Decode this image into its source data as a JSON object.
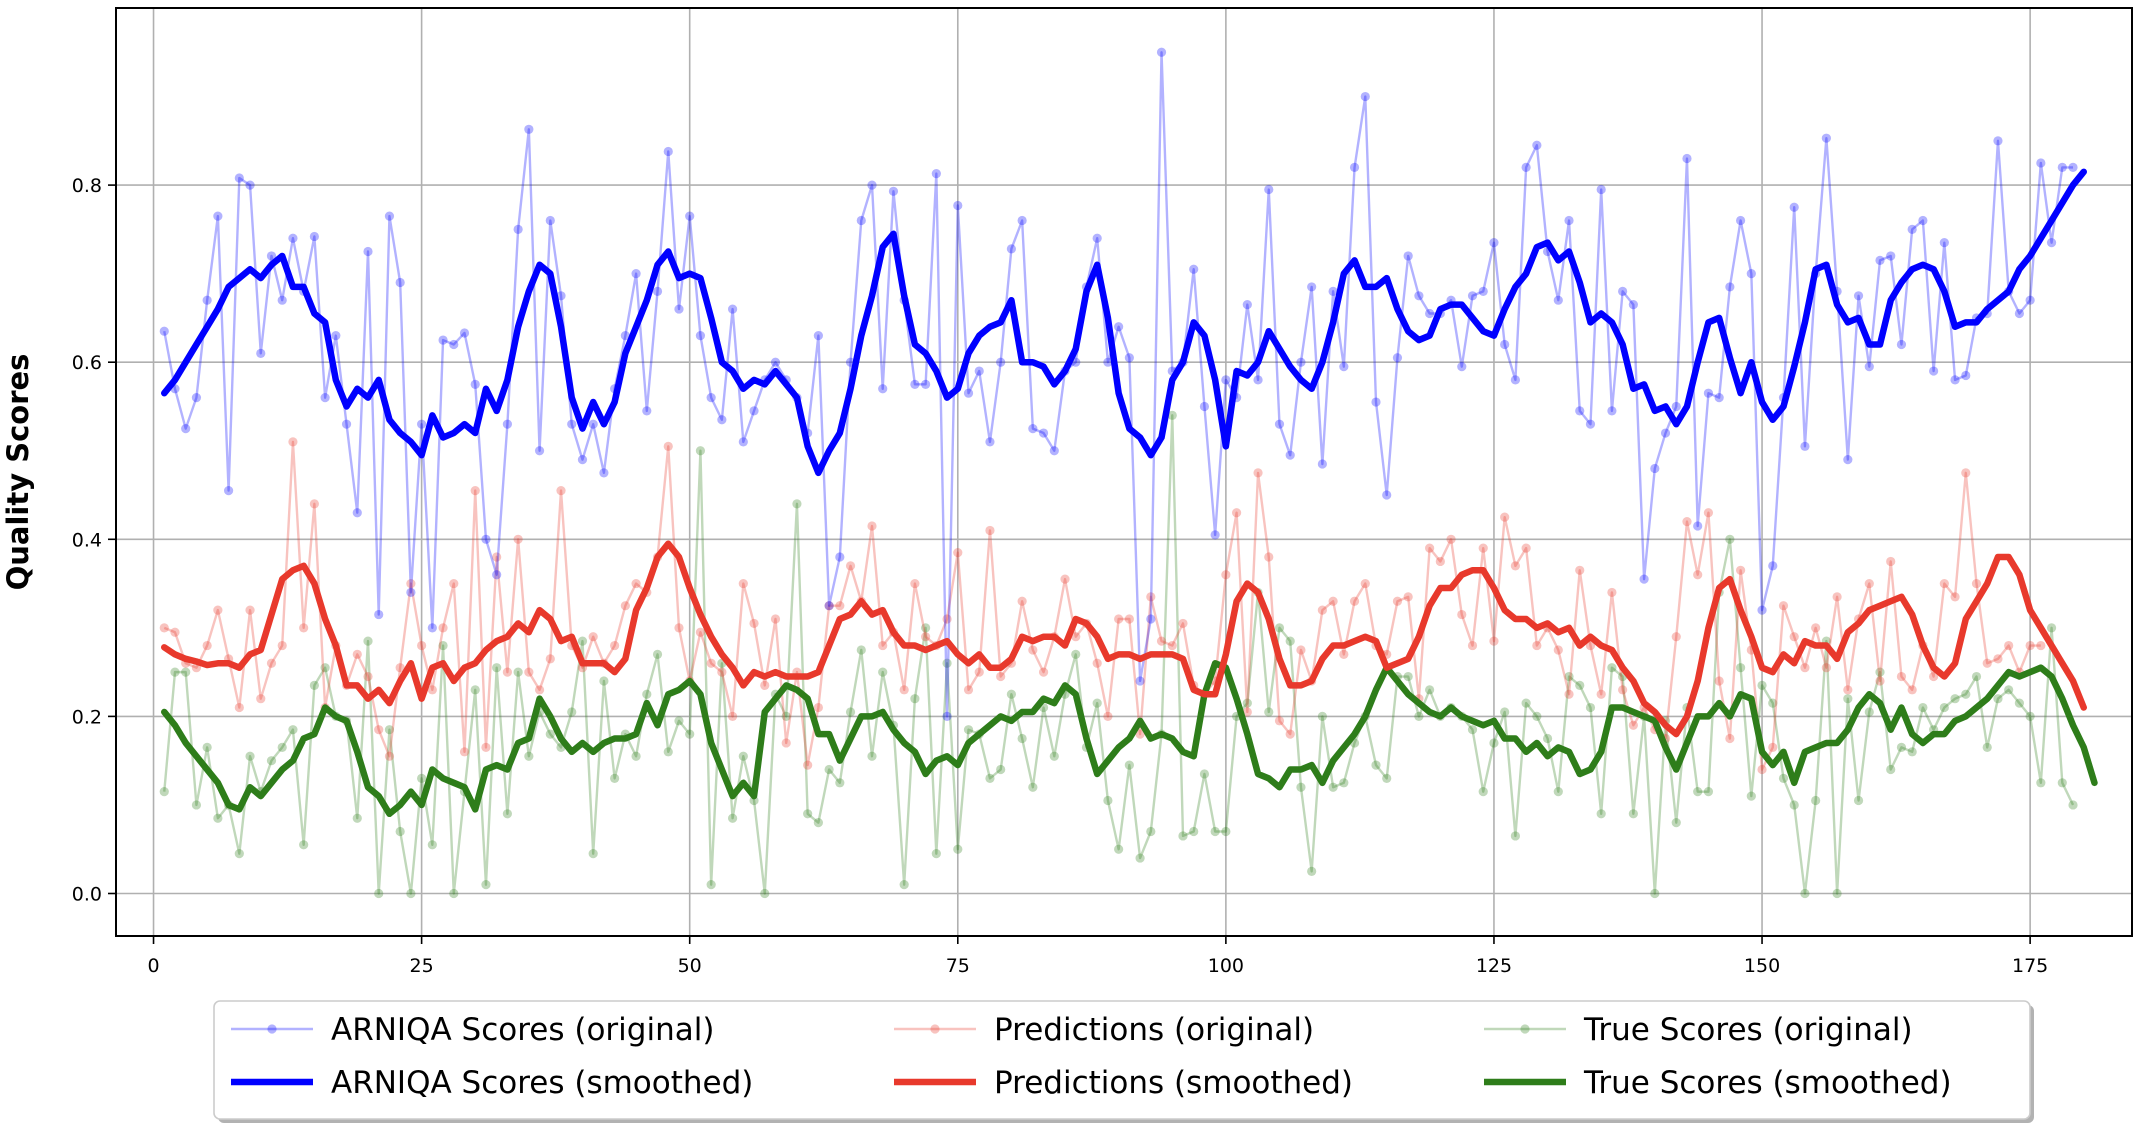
{
  "chart_data": {
    "type": "line",
    "title": "",
    "xlabel": "",
    "ylabel": "Quality Scores",
    "xlim": [
      -3.5,
      184.5
    ],
    "ylim": [
      -0.048,
      1.0
    ],
    "xticks": [
      0,
      25,
      50,
      75,
      100,
      125,
      150,
      175
    ],
    "yticks": [
      0.0,
      0.2,
      0.4,
      0.6,
      0.8
    ],
    "grid": true,
    "legend_position": "bottom-center",
    "legend_columns": 3,
    "x_range": [
      1,
      180
    ],
    "series": [
      {
        "name": "ARNIQA Scores (original)",
        "color": "#0000ff",
        "style": "line-markers",
        "opacity": 0.3,
        "values": [
          0.635,
          0.57,
          0.525,
          0.56,
          0.67,
          0.765,
          0.455,
          0.808,
          0.8,
          0.61,
          0.72,
          0.67,
          0.74,
          0.68,
          0.742,
          0.56,
          0.63,
          0.53,
          0.43,
          0.725,
          0.315,
          0.765,
          0.69,
          0.34,
          0.53,
          0.3,
          0.625,
          0.62,
          0.633,
          0.575,
          0.4,
          0.36,
          0.53,
          0.75,
          0.863,
          0.5,
          0.76,
          0.675,
          0.53,
          0.49,
          0.53,
          0.475,
          0.57,
          0.63,
          0.7,
          0.545,
          0.68,
          0.838,
          0.66,
          0.765,
          0.63,
          0.56,
          0.535,
          0.66,
          0.51,
          0.545,
          0.58,
          0.6,
          0.58,
          0.56,
          0.52,
          0.63,
          0.325,
          0.38,
          0.6,
          0.76,
          0.8,
          0.57,
          0.793,
          0.67,
          0.575,
          0.575,
          0.813,
          0.2,
          0.777,
          0.565,
          0.59,
          0.51,
          0.6,
          0.728,
          0.76,
          0.525,
          0.52,
          0.5,
          0.59,
          0.6,
          0.685,
          0.74,
          0.6,
          0.64,
          0.605,
          0.24,
          0.31,
          0.95,
          0.59,
          0.6,
          0.705,
          0.55,
          0.405,
          0.58,
          0.56,
          0.665,
          0.58,
          0.795,
          0.53,
          0.495,
          0.6,
          0.685,
          0.485,
          0.68,
          0.595,
          0.82,
          0.9,
          0.555,
          0.45,
          0.605,
          0.72,
          0.675,
          0.655,
          0.655,
          0.67,
          0.595,
          0.675,
          0.68,
          0.735,
          0.62,
          0.58,
          0.82,
          0.845,
          0.725,
          0.67,
          0.76,
          0.545,
          0.53,
          0.795,
          0.545,
          0.68,
          0.665,
          0.355,
          0.48,
          0.52,
          0.55,
          0.83,
          0.415,
          0.565,
          0.56,
          0.685,
          0.76,
          0.7,
          0.32,
          0.37,
          0.56,
          0.775,
          0.505,
          0.7,
          0.853,
          0.68,
          0.49,
          0.675,
          0.595,
          0.715,
          0.72,
          0.62,
          0.75,
          0.76,
          0.59,
          0.735,
          0.58,
          0.585,
          0.65,
          0.655,
          0.85,
          0.68,
          0.655,
          0.67,
          0.825,
          0.735,
          0.82,
          0.82
        ]
      },
      {
        "name": "ARNIQA Scores (smoothed)",
        "color": "#0000ff",
        "style": "line",
        "values": [
          0.565,
          0.58,
          0.6,
          0.62,
          0.64,
          0.66,
          0.685,
          0.695,
          0.705,
          0.695,
          0.71,
          0.72,
          0.685,
          0.685,
          0.655,
          0.645,
          0.58,
          0.55,
          0.57,
          0.56,
          0.58,
          0.535,
          0.52,
          0.51,
          0.495,
          0.54,
          0.515,
          0.52,
          0.53,
          0.52,
          0.57,
          0.545,
          0.58,
          0.64,
          0.68,
          0.71,
          0.7,
          0.64,
          0.56,
          0.525,
          0.555,
          0.53,
          0.555,
          0.61,
          0.64,
          0.67,
          0.71,
          0.725,
          0.695,
          0.7,
          0.695,
          0.65,
          0.6,
          0.59,
          0.57,
          0.58,
          0.575,
          0.59,
          0.575,
          0.56,
          0.505,
          0.475,
          0.5,
          0.52,
          0.57,
          0.63,
          0.675,
          0.73,
          0.745,
          0.675,
          0.62,
          0.61,
          0.59,
          0.56,
          0.57,
          0.61,
          0.63,
          0.64,
          0.645,
          0.67,
          0.6,
          0.6,
          0.595,
          0.575,
          0.59,
          0.615,
          0.68,
          0.71,
          0.65,
          0.565,
          0.525,
          0.515,
          0.495,
          0.515,
          0.58,
          0.6,
          0.645,
          0.63,
          0.58,
          0.505,
          0.59,
          0.585,
          0.6,
          0.635,
          0.615,
          0.595,
          0.58,
          0.57,
          0.6,
          0.645,
          0.7,
          0.715,
          0.685,
          0.685,
          0.695,
          0.66,
          0.635,
          0.625,
          0.63,
          0.66,
          0.665,
          0.665,
          0.65,
          0.635,
          0.63,
          0.66,
          0.685,
          0.7,
          0.73,
          0.735,
          0.715,
          0.725,
          0.69,
          0.645,
          0.655,
          0.645,
          0.62,
          0.57,
          0.575,
          0.545,
          0.55,
          0.53,
          0.55,
          0.6,
          0.645,
          0.65,
          0.605,
          0.565,
          0.6,
          0.555,
          0.535,
          0.55,
          0.595,
          0.645,
          0.705,
          0.71,
          0.665,
          0.645,
          0.65,
          0.62,
          0.62,
          0.67,
          0.69,
          0.705,
          0.71,
          0.705,
          0.68,
          0.64,
          0.645,
          0.645,
          0.66,
          0.67,
          0.68,
          0.705,
          0.72,
          0.74,
          0.76,
          0.78,
          0.8,
          0.815
        ]
      },
      {
        "name": "Predictions (original)",
        "color": "#e8392c",
        "style": "line-markers",
        "opacity": 0.3,
        "values": [
          0.3,
          0.295,
          0.26,
          0.255,
          0.28,
          0.32,
          0.265,
          0.21,
          0.32,
          0.22,
          0.26,
          0.28,
          0.51,
          0.3,
          0.44,
          0.21,
          0.28,
          0.235,
          0.27,
          0.245,
          0.185,
          0.155,
          0.255,
          0.35,
          0.28,
          0.23,
          0.3,
          0.35,
          0.16,
          0.455,
          0.165,
          0.38,
          0.25,
          0.4,
          0.25,
          0.23,
          0.265,
          0.455,
          0.28,
          0.255,
          0.29,
          0.26,
          0.28,
          0.325,
          0.35,
          0.34,
          0.38,
          0.505,
          0.3,
          0.24,
          0.295,
          0.26,
          0.25,
          0.2,
          0.35,
          0.305,
          0.235,
          0.31,
          0.17,
          0.25,
          0.145,
          0.21,
          0.325,
          0.325,
          0.37,
          0.33,
          0.415,
          0.28,
          0.295,
          0.23,
          0.35,
          0.29,
          0.28,
          0.31,
          0.385,
          0.23,
          0.25,
          0.41,
          0.245,
          0.26,
          0.33,
          0.275,
          0.25,
          0.29,
          0.355,
          0.29,
          0.305,
          0.26,
          0.2,
          0.31,
          0.31,
          0.18,
          0.335,
          0.285,
          0.28,
          0.305,
          0.235,
          0.225,
          0.24,
          0.36,
          0.43,
          0.205,
          0.475,
          0.38,
          0.195,
          0.18,
          0.275,
          0.24,
          0.32,
          0.33,
          0.27,
          0.33,
          0.35,
          0.28,
          0.27,
          0.33,
          0.335,
          0.22,
          0.39,
          0.375,
          0.4,
          0.315,
          0.28,
          0.39,
          0.285,
          0.425,
          0.37,
          0.39,
          0.28,
          0.3,
          0.275,
          0.225,
          0.365,
          0.28,
          0.225,
          0.34,
          0.23,
          0.19,
          0.21,
          0.185,
          0.175,
          0.29,
          0.42,
          0.36,
          0.43,
          0.24,
          0.175,
          0.365,
          0.275,
          0.14,
          0.165,
          0.325,
          0.29,
          0.255,
          0.3,
          0.255,
          0.335,
          0.23,
          0.31,
          0.35,
          0.24,
          0.375,
          0.245,
          0.23,
          0.28,
          0.245,
          0.35,
          0.335,
          0.475,
          0.35,
          0.26,
          0.265,
          0.28,
          0.25,
          0.28,
          0.28
        ]
      },
      {
        "name": "Predictions (smoothed)",
        "color": "#e8392c",
        "style": "line",
        "values": [
          0.278,
          0.27,
          0.265,
          0.262,
          0.258,
          0.26,
          0.26,
          0.255,
          0.27,
          0.275,
          0.315,
          0.355,
          0.365,
          0.37,
          0.35,
          0.31,
          0.28,
          0.235,
          0.235,
          0.22,
          0.23,
          0.215,
          0.24,
          0.26,
          0.22,
          0.255,
          0.26,
          0.24,
          0.255,
          0.26,
          0.275,
          0.285,
          0.29,
          0.305,
          0.295,
          0.32,
          0.31,
          0.285,
          0.29,
          0.26,
          0.26,
          0.26,
          0.25,
          0.265,
          0.32,
          0.345,
          0.38,
          0.395,
          0.38,
          0.345,
          0.315,
          0.29,
          0.27,
          0.255,
          0.235,
          0.25,
          0.245,
          0.25,
          0.245,
          0.245,
          0.245,
          0.25,
          0.28,
          0.31,
          0.315,
          0.33,
          0.315,
          0.32,
          0.295,
          0.28,
          0.28,
          0.275,
          0.28,
          0.285,
          0.27,
          0.26,
          0.27,
          0.255,
          0.255,
          0.265,
          0.29,
          0.285,
          0.29,
          0.29,
          0.28,
          0.31,
          0.305,
          0.29,
          0.265,
          0.27,
          0.27,
          0.265,
          0.27,
          0.27,
          0.27,
          0.265,
          0.23,
          0.225,
          0.225,
          0.27,
          0.33,
          0.35,
          0.34,
          0.31,
          0.265,
          0.235,
          0.235,
          0.24,
          0.265,
          0.28,
          0.28,
          0.285,
          0.29,
          0.285,
          0.255,
          0.26,
          0.265,
          0.29,
          0.325,
          0.345,
          0.345,
          0.36,
          0.365,
          0.365,
          0.345,
          0.32,
          0.31,
          0.31,
          0.3,
          0.305,
          0.295,
          0.3,
          0.28,
          0.29,
          0.28,
          0.275,
          0.255,
          0.24,
          0.215,
          0.205,
          0.19,
          0.18,
          0.2,
          0.24,
          0.3,
          0.345,
          0.355,
          0.32,
          0.29,
          0.255,
          0.25,
          0.27,
          0.26,
          0.285,
          0.28,
          0.28,
          0.265,
          0.295,
          0.305,
          0.32,
          0.325,
          0.33,
          0.335,
          0.315,
          0.28,
          0.255,
          0.245,
          0.26,
          0.31,
          0.33,
          0.35,
          0.38,
          0.38,
          0.36,
          0.32,
          0.3,
          0.28,
          0.26,
          0.24,
          0.21
        ]
      },
      {
        "name": "True Scores (original)",
        "color": "#2e7d1a",
        "style": "line-markers",
        "opacity": 0.3,
        "values": [
          0.115,
          0.25,
          0.25,
          0.1,
          0.165,
          0.085,
          0.1,
          0.045,
          0.155,
          0.115,
          0.15,
          0.165,
          0.185,
          0.055,
          0.235,
          0.255,
          0.2,
          0.195,
          0.085,
          0.285,
          0.0,
          0.185,
          0.07,
          0.0,
          0.13,
          0.055,
          0.28,
          0.0,
          0.115,
          0.23,
          0.01,
          0.255,
          0.09,
          0.25,
          0.155,
          0.205,
          0.18,
          0.165,
          0.205,
          0.285,
          0.045,
          0.24,
          0.13,
          0.18,
          0.155,
          0.225,
          0.27,
          0.16,
          0.195,
          0.18,
          0.5,
          0.01,
          0.26,
          0.085,
          0.155,
          0.105,
          0.0,
          0.225,
          0.2,
          0.44,
          0.09,
          0.08,
          0.14,
          0.125,
          0.205,
          0.275,
          0.155,
          0.25,
          0.19,
          0.01,
          0.22,
          0.3,
          0.045,
          0.26,
          0.05,
          0.185,
          0.18,
          0.13,
          0.14,
          0.225,
          0.175,
          0.12,
          0.21,
          0.155,
          0.225,
          0.27,
          0.165,
          0.215,
          0.105,
          0.05,
          0.145,
          0.04,
          0.07,
          0.18,
          0.54,
          0.065,
          0.07,
          0.135,
          0.07,
          0.07,
          0.2,
          0.215,
          0.34,
          0.205,
          0.3,
          0.285,
          0.12,
          0.025,
          0.2,
          0.12,
          0.125,
          0.17,
          0.2,
          0.145,
          0.13,
          0.245,
          0.245,
          0.2,
          0.23,
          0.2,
          0.21,
          0.2,
          0.185,
          0.115,
          0.17,
          0.205,
          0.065,
          0.215,
          0.2,
          0.175,
          0.115,
          0.245,
          0.235,
          0.21,
          0.09,
          0.255,
          0.245,
          0.09,
          0.2,
          0.0,
          0.195,
          0.08,
          0.21,
          0.115,
          0.115,
          0.34,
          0.4,
          0.255,
          0.11,
          0.235,
          0.215,
          0.13,
          0.1,
          0.0,
          0.105,
          0.285,
          0.0,
          0.22,
          0.105,
          0.205,
          0.25,
          0.14,
          0.165,
          0.16,
          0.21,
          0.185,
          0.21,
          0.22,
          0.225,
          0.245,
          0.165,
          0.22,
          0.23,
          0.215,
          0.2,
          0.125,
          0.3,
          0.125,
          0.1
        ]
      },
      {
        "name": "True Scores (smoothed)",
        "color": "#2e7d1a",
        "style": "line",
        "values": [
          0.205,
          0.19,
          0.17,
          0.155,
          0.14,
          0.125,
          0.1,
          0.095,
          0.12,
          0.11,
          0.125,
          0.14,
          0.15,
          0.175,
          0.18,
          0.21,
          0.2,
          0.195,
          0.16,
          0.12,
          0.11,
          0.09,
          0.1,
          0.115,
          0.1,
          0.14,
          0.13,
          0.125,
          0.12,
          0.095,
          0.14,
          0.145,
          0.14,
          0.17,
          0.175,
          0.22,
          0.2,
          0.175,
          0.16,
          0.17,
          0.16,
          0.17,
          0.175,
          0.175,
          0.18,
          0.215,
          0.19,
          0.225,
          0.23,
          0.24,
          0.225,
          0.17,
          0.14,
          0.11,
          0.125,
          0.11,
          0.205,
          0.22,
          0.235,
          0.23,
          0.22,
          0.18,
          0.18,
          0.15,
          0.175,
          0.2,
          0.2,
          0.205,
          0.185,
          0.17,
          0.16,
          0.135,
          0.15,
          0.155,
          0.145,
          0.17,
          0.18,
          0.19,
          0.2,
          0.195,
          0.205,
          0.205,
          0.22,
          0.215,
          0.235,
          0.225,
          0.175,
          0.135,
          0.15,
          0.165,
          0.175,
          0.195,
          0.175,
          0.18,
          0.175,
          0.16,
          0.155,
          0.225,
          0.26,
          0.255,
          0.22,
          0.18,
          0.135,
          0.13,
          0.12,
          0.14,
          0.14,
          0.145,
          0.125,
          0.15,
          0.165,
          0.18,
          0.2,
          0.23,
          0.255,
          0.24,
          0.225,
          0.215,
          0.205,
          0.2,
          0.21,
          0.2,
          0.195,
          0.19,
          0.195,
          0.175,
          0.175,
          0.16,
          0.17,
          0.155,
          0.165,
          0.16,
          0.135,
          0.14,
          0.16,
          0.21,
          0.21,
          0.205,
          0.2,
          0.195,
          0.165,
          0.14,
          0.17,
          0.2,
          0.2,
          0.215,
          0.2,
          0.225,
          0.22,
          0.16,
          0.145,
          0.16,
          0.125,
          0.16,
          0.165,
          0.17,
          0.17,
          0.185,
          0.21,
          0.225,
          0.215,
          0.185,
          0.21,
          0.18,
          0.17,
          0.18,
          0.18,
          0.195,
          0.2,
          0.21,
          0.22,
          0.235,
          0.25,
          0.245,
          0.25,
          0.255,
          0.245,
          0.22,
          0.19,
          0.165,
          0.125
        ]
      }
    ]
  }
}
